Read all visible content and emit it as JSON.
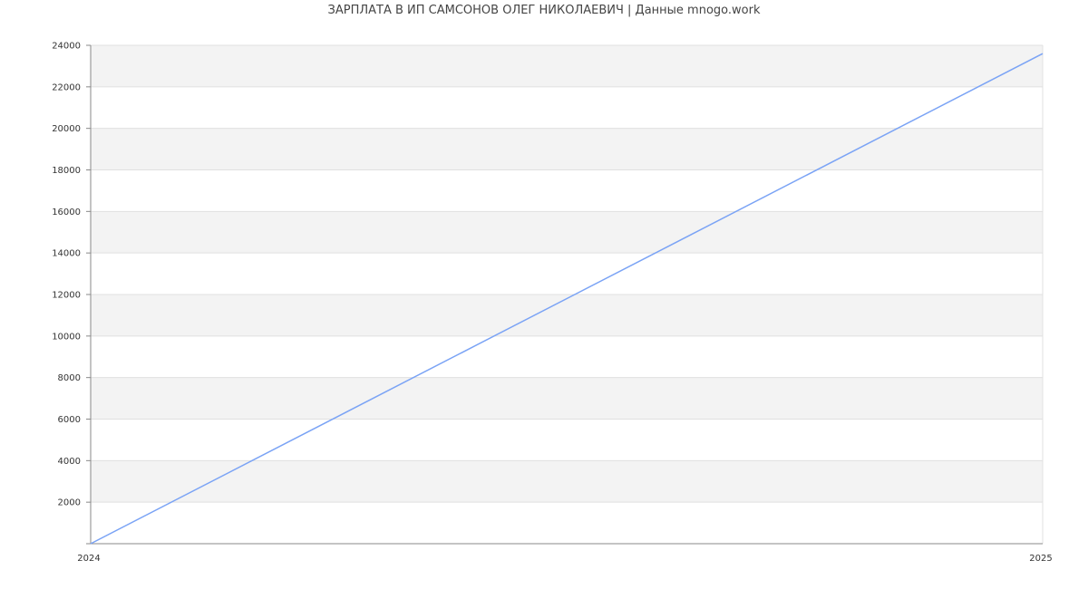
{
  "chart_data": {
    "type": "line",
    "title": "ЗАРПЛАТА В ИП САМСОНОВ ОЛЕГ НИКОЛАЕВИЧ | Данные mnogo.work",
    "xlabel": "",
    "ylabel": "",
    "x": [
      "2024",
      "2025"
    ],
    "values": [
      0,
      23600
    ],
    "ylim": [
      0,
      24000
    ],
    "yticks": [
      2000,
      4000,
      6000,
      8000,
      10000,
      12000,
      14000,
      16000,
      18000,
      20000,
      22000,
      24000
    ],
    "xticks": [
      "2024",
      "2025"
    ],
    "grid": true,
    "line_color": "#7aa3f5",
    "band_color": "#f3f3f3"
  }
}
